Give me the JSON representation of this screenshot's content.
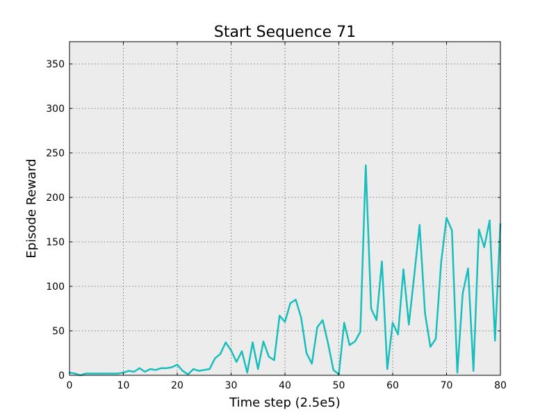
{
  "chart_data": {
    "type": "line",
    "title": "Start Sequence 71",
    "xlabel": "Time step (2.5e5)",
    "ylabel": "Episode Reward",
    "xlim": [
      0,
      80
    ],
    "ylim": [
      0,
      375
    ],
    "xticks": [
      0,
      10,
      20,
      30,
      40,
      50,
      60,
      70,
      80
    ],
    "yticks": [
      0,
      50,
      100,
      150,
      200,
      250,
      300,
      350
    ],
    "grid": true,
    "colors": {
      "plot_background": "#ececec",
      "series": "#17bebb"
    },
    "series": [
      {
        "x": [
          0,
          1,
          2,
          3,
          4,
          5,
          6,
          7,
          8,
          9,
          10,
          11,
          12,
          13,
          14,
          15,
          16,
          17,
          18,
          19,
          20,
          21,
          22,
          23,
          24,
          25,
          26,
          27,
          28,
          29,
          30,
          31,
          32,
          33,
          34,
          35,
          36,
          37,
          38,
          39,
          40,
          41,
          42,
          43,
          44,
          45,
          46,
          47,
          48,
          49,
          50,
          51,
          52,
          53,
          54,
          55,
          56,
          57,
          58,
          59,
          60,
          61,
          62,
          63,
          64,
          65,
          66,
          67,
          68,
          69,
          70,
          71,
          72,
          73,
          74,
          75,
          76,
          77,
          78,
          79,
          80
        ],
        "values": [
          3,
          2,
          0,
          2,
          2,
          2,
          2,
          2,
          2,
          2,
          3,
          5,
          4,
          8,
          4,
          7,
          6,
          8,
          8,
          9,
          12,
          5,
          1,
          7,
          5,
          6,
          7,
          19,
          24,
          37,
          28,
          15,
          27,
          3,
          37,
          7,
          38,
          21,
          17,
          67,
          60,
          81,
          85,
          65,
          25,
          13,
          54,
          62,
          36,
          6,
          1,
          59,
          34,
          38,
          49,
          236,
          75,
          62,
          128,
          7,
          59,
          46,
          119,
          57,
          112,
          169,
          70,
          32,
          41,
          127,
          177,
          163,
          3,
          92,
          120,
          5,
          164,
          144,
          174,
          39,
          170
        ]
      }
    ]
  }
}
